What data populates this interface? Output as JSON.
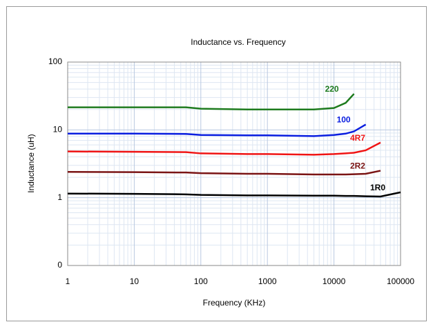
{
  "chart_data": {
    "type": "line",
    "title": "Inductance vs. Frequency",
    "x_label": "Frequency (KHz)",
    "y_label": "Inductance (uH)",
    "x": [
      1,
      10,
      60,
      100,
      500,
      1000,
      5000,
      10000,
      15000,
      20000,
      30000,
      50000,
      100000
    ],
    "series": [
      {
        "name": "220",
        "color": "#1e7b1e",
        "values": [
          21.5,
          21.5,
          21.5,
          20.5,
          20,
          20,
          20,
          21,
          25,
          34,
          null,
          null,
          null
        ]
      },
      {
        "name": "100",
        "color": "#0a1ee0",
        "values": [
          8.8,
          8.8,
          8.7,
          8.4,
          8.3,
          8.3,
          8.1,
          8.4,
          8.8,
          9.5,
          12,
          null,
          null
        ]
      },
      {
        "name": "4R7",
        "color": "#f01414",
        "values": [
          4.8,
          4.75,
          4.7,
          4.5,
          4.4,
          4.4,
          4.3,
          4.4,
          4.5,
          4.6,
          5.0,
          6.5,
          null
        ]
      },
      {
        "name": "2R2",
        "color": "#7a1414",
        "values": [
          2.4,
          2.38,
          2.35,
          2.3,
          2.25,
          2.25,
          2.2,
          2.2,
          2.2,
          2.22,
          2.25,
          2.5,
          null
        ]
      },
      {
        "name": "1R0",
        "color": "#000000",
        "values": [
          1.15,
          1.14,
          1.12,
          1.1,
          1.08,
          1.08,
          1.07,
          1.07,
          1.06,
          1.06,
          1.05,
          1.04,
          1.2
        ]
      }
    ],
    "xlim": [
      1,
      100000
    ],
    "xticks": [
      1,
      10,
      100,
      1000,
      10000,
      100000
    ],
    "ylim": [
      0.1,
      100
    ],
    "yticks": [
      {
        "value": 0.1,
        "label": "0"
      },
      1,
      10,
      100
    ],
    "x_log": true,
    "y_log": true,
    "grid": true
  }
}
